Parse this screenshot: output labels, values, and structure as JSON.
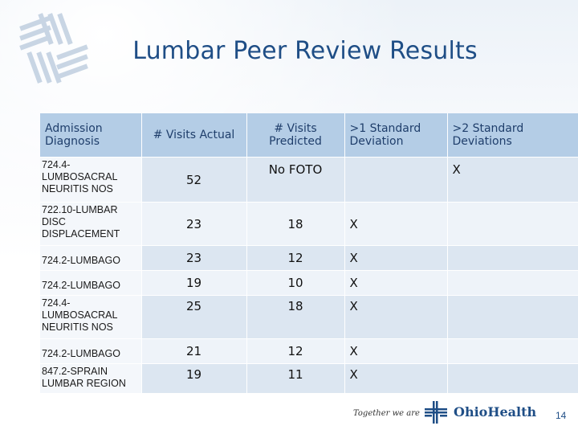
{
  "slide": {
    "title": "Lumbar Peer Review Results",
    "page_number": "14"
  },
  "table": {
    "headers": [
      "Admission Diagnosis",
      "# Visits Actual",
      "# Visits Predicted",
      ">1 Standard Deviation",
      ">2 Standard Deviations"
    ],
    "rows": [
      {
        "diagnosis": "724.4-LUMBOSACRAL NEURITIS NOS",
        "actual": "52",
        "predicted": "No FOTO",
        "gt1": "",
        "gt2": "X"
      },
      {
        "diagnosis": "722.10-LUMBAR DISC DISPLACEMENT",
        "actual": "23",
        "predicted": "18",
        "gt1": "X",
        "gt2": ""
      },
      {
        "diagnosis": "724.2-LUMBAGO",
        "actual": "23",
        "predicted": "12",
        "gt1": "X",
        "gt2": ""
      },
      {
        "diagnosis": "724.2-LUMBAGO",
        "actual": "19",
        "predicted": "10",
        "gt1": "X",
        "gt2": ""
      },
      {
        "diagnosis": "724.4-LUMBOSACRAL NEURITIS NOS",
        "actual": "25",
        "predicted": "18",
        "gt1": "X",
        "gt2": ""
      },
      {
        "diagnosis": "724.2-LUMBAGO",
        "actual": "21",
        "predicted": "12",
        "gt1": "X",
        "gt2": ""
      },
      {
        "diagnosis": "847.2-SPRAIN LUMBAR REGION",
        "actual": "19",
        "predicted": "11",
        "gt1": "X",
        "gt2": ""
      }
    ]
  },
  "footer": {
    "tagline": "Together we are",
    "brand": "OhioHealth",
    "logo_icon": "ohiohealth-cross-logo-icon"
  },
  "colors": {
    "title": "#1f4e86",
    "header_fill": "#b4cde6",
    "row_fill_a": "#dce6f1",
    "row_fill_b": "#eef3f9",
    "brand": "#1f4e86"
  }
}
